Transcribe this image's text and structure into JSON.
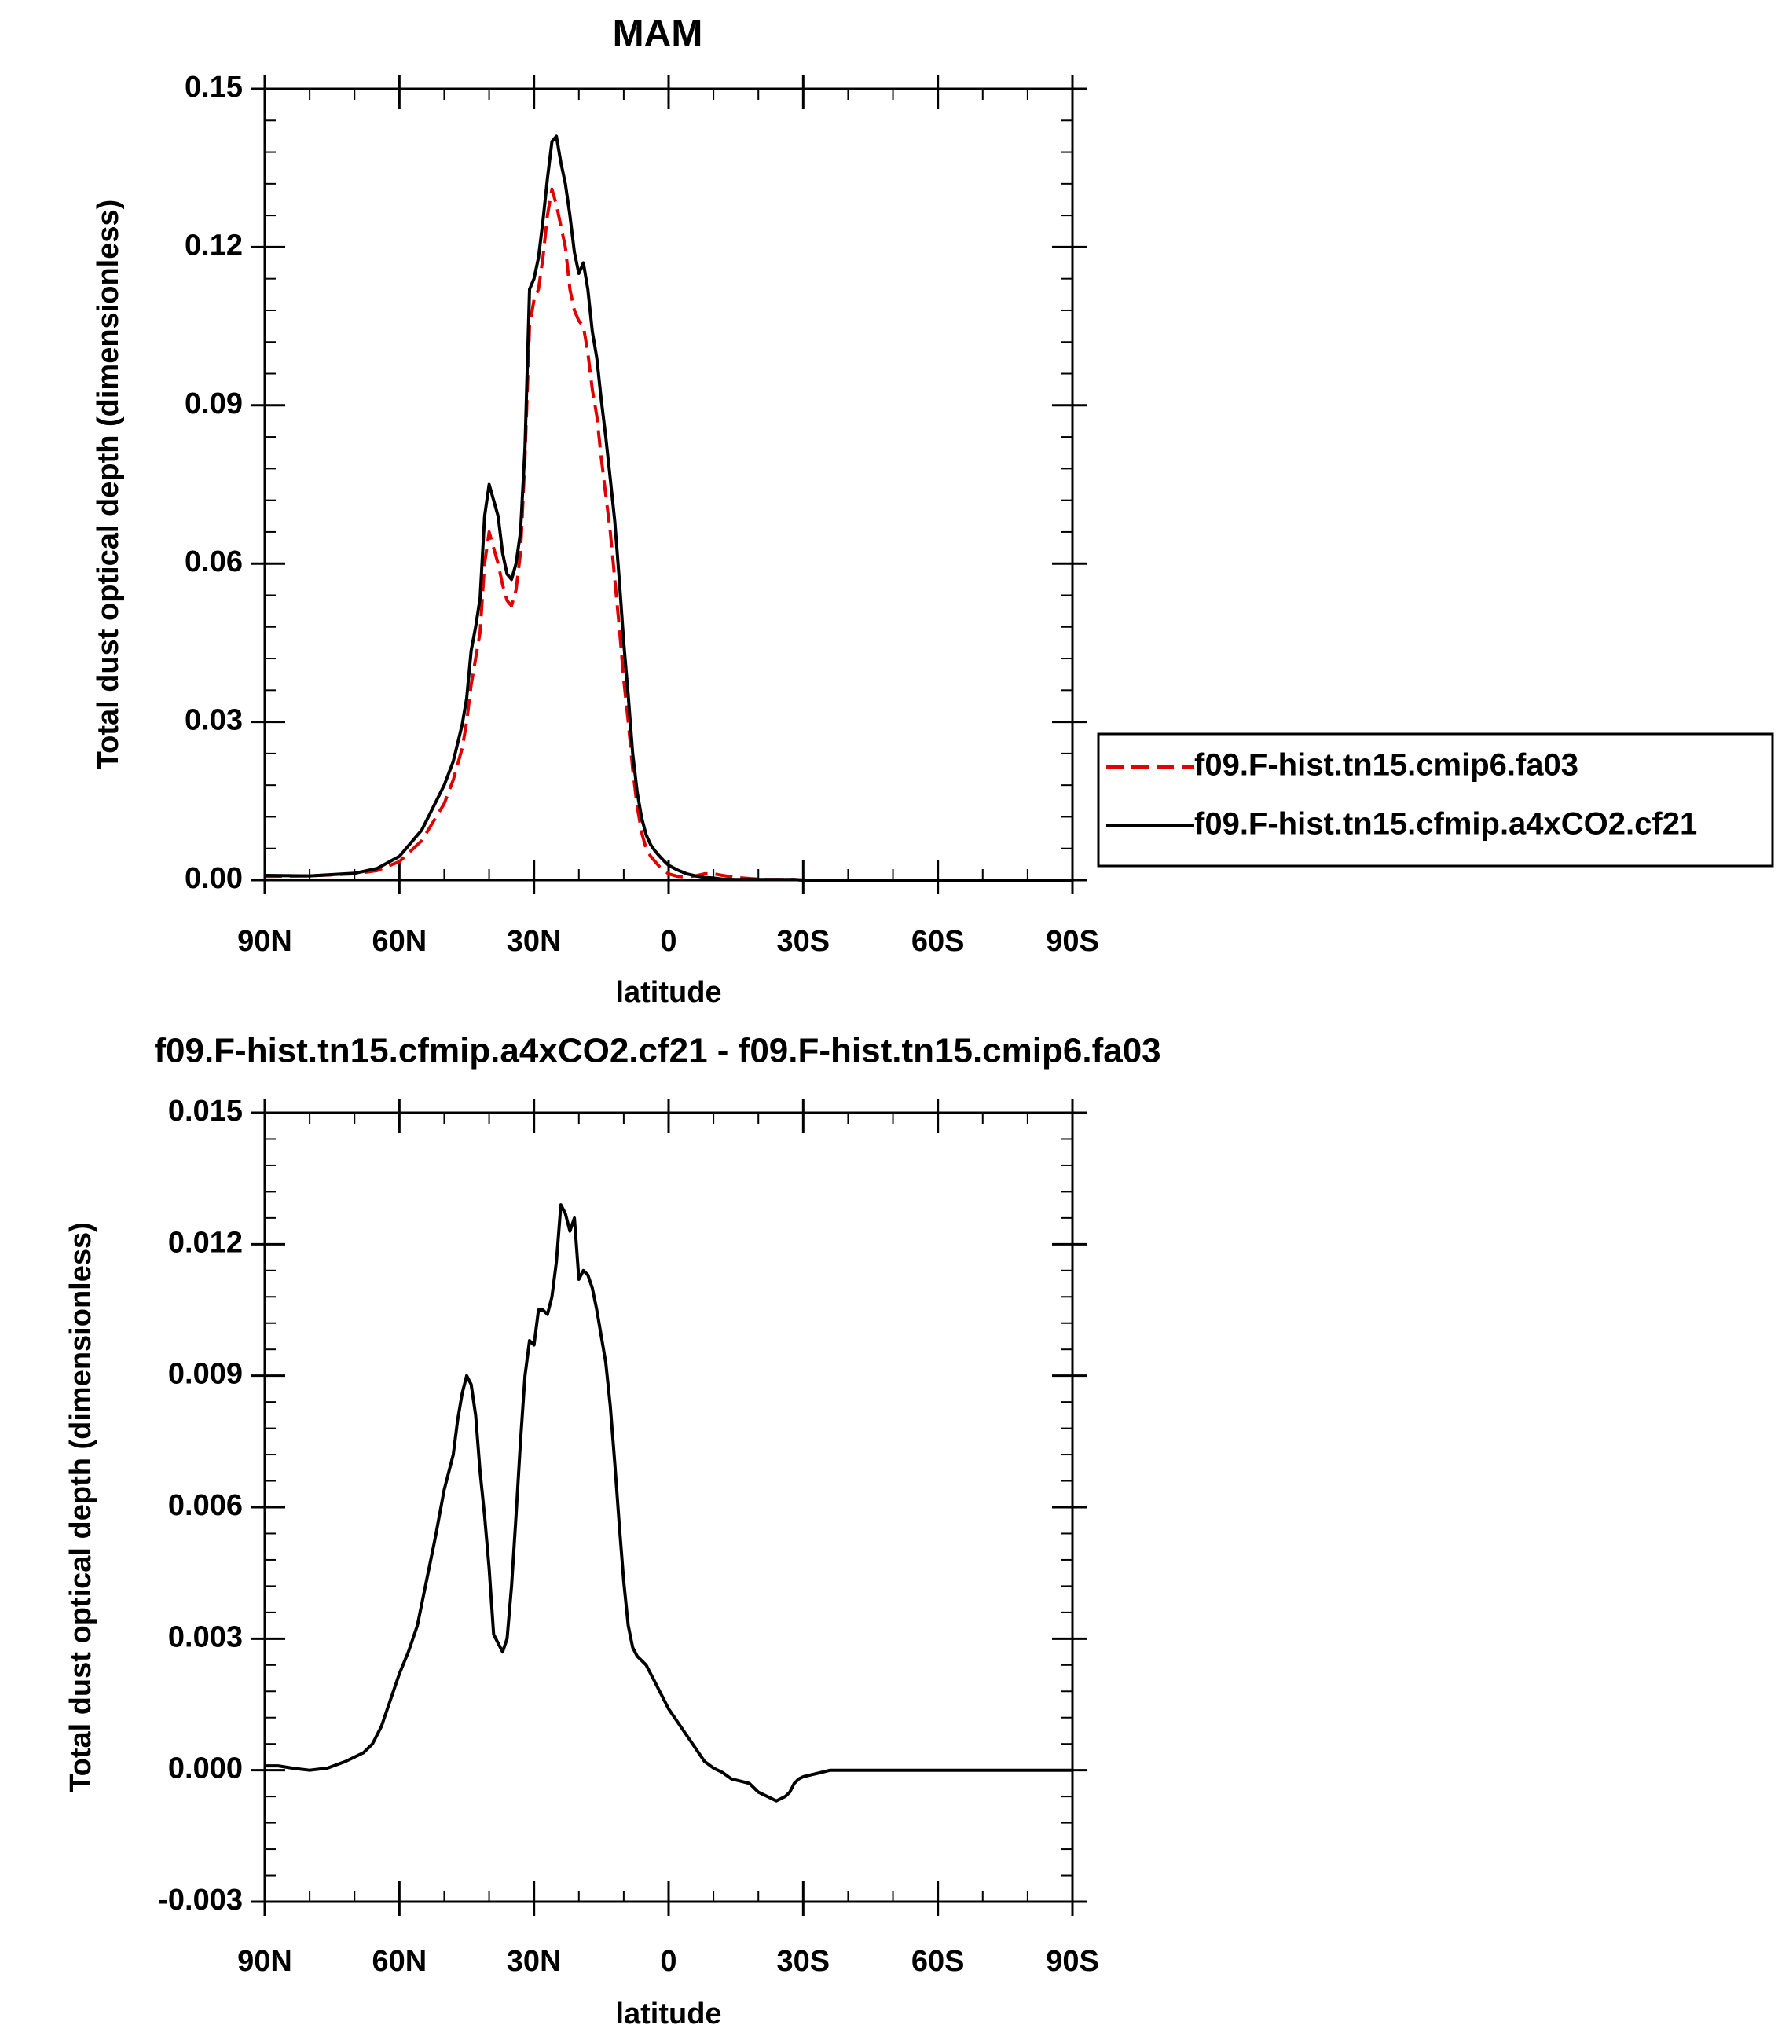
{
  "chart_data": [
    {
      "type": "line",
      "title": "MAM",
      "xlabel": "latitude",
      "ylabel": "Total dust optical depth (dimensionless)",
      "xlim": [
        90,
        -90
      ],
      "ylim": [
        0,
        0.15
      ],
      "xticks": [
        90,
        60,
        30,
        0,
        -30,
        -60,
        -90
      ],
      "xtick_labels": [
        "90N",
        "60N",
        "30N",
        "0",
        "30S",
        "60S",
        "90S"
      ],
      "yticks": [
        0,
        0.03,
        0.06,
        0.09,
        0.12,
        0.15
      ],
      "ytick_labels": [
        "0.00",
        "0.03",
        "0.06",
        "0.09",
        "0.12",
        "0.15"
      ],
      "legend_position": "right",
      "series": [
        {
          "name": "f09.F-hist.tn15.cmip6.fa03",
          "color": "#e00000",
          "dash": "dashed",
          "x": [
            90,
            80,
            70,
            65,
            60,
            55,
            50,
            48,
            46,
            45,
            44,
            43,
            42,
            41,
            40,
            39,
            38,
            37,
            36,
            35,
            34,
            33,
            32,
            31,
            30,
            29,
            28,
            27,
            26,
            25,
            24,
            23,
            22,
            21,
            20,
            19,
            18,
            17,
            16,
            15,
            14,
            13,
            12,
            11,
            10,
            9,
            8,
            7,
            6,
            5,
            4,
            3,
            2,
            1,
            0,
            -2,
            -4,
            -6,
            -8,
            -10,
            -12,
            -15,
            -18,
            -20,
            -22,
            -25,
            -28,
            -30,
            -35,
            -40,
            -50,
            -60,
            -70,
            -80,
            -90
          ],
          "y": [
            0.0007,
            0.0008,
            0.0012,
            0.0018,
            0.0035,
            0.0075,
            0.0145,
            0.019,
            0.025,
            0.03,
            0.037,
            0.042,
            0.047,
            0.06,
            0.066,
            0.063,
            0.06,
            0.056,
            0.053,
            0.052,
            0.055,
            0.062,
            0.08,
            0.105,
            0.11,
            0.112,
            0.118,
            0.126,
            0.131,
            0.128,
            0.124,
            0.12,
            0.112,
            0.108,
            0.106,
            0.105,
            0.1,
            0.093,
            0.088,
            0.08,
            0.073,
            0.066,
            0.057,
            0.048,
            0.038,
            0.03,
            0.021,
            0.014,
            0.009,
            0.006,
            0.0045,
            0.0035,
            0.0025,
            0.0018,
            0.0012,
            0.0007,
            0.0006,
            0.0008,
            0.0012,
            0.0012,
            0.0009,
            0.0005,
            0.0003,
            0.0002,
            0.0001,
            0.0001,
            0.0001,
            0.0,
            0.0,
            0.0,
            0.0,
            0.0,
            0.0,
            0.0,
            0.0
          ]
        },
        {
          "name": "f09.F-hist.tn15.cfmip.a4xCO2.cf21",
          "color": "#000000",
          "dash": "solid",
          "x": [
            90,
            80,
            70,
            65,
            60,
            55,
            50,
            48,
            46,
            45,
            44,
            43,
            42,
            41,
            40,
            39,
            38,
            37,
            36,
            35,
            34,
            33,
            32,
            31,
            30,
            29,
            28,
            27,
            26,
            25,
            24,
            23,
            22,
            21,
            20,
            19,
            18,
            17,
            16,
            15,
            14,
            13,
            12,
            11,
            10,
            9,
            8,
            7,
            6,
            5,
            4,
            3,
            2,
            1,
            0,
            -2,
            -4,
            -6,
            -8,
            -10,
            -12,
            -15,
            -18,
            -20,
            -22,
            -25,
            -28,
            -30,
            -35,
            -40,
            -50,
            -60,
            -70,
            -80,
            -90
          ],
          "y": [
            0.0009,
            0.0008,
            0.0013,
            0.0022,
            0.0045,
            0.0095,
            0.018,
            0.0225,
            0.0295,
            0.0345,
            0.0435,
            0.048,
            0.0535,
            0.069,
            0.075,
            0.072,
            0.069,
            0.062,
            0.058,
            0.057,
            0.06,
            0.066,
            0.082,
            0.112,
            0.114,
            0.118,
            0.125,
            0.133,
            0.14,
            0.141,
            0.136,
            0.132,
            0.126,
            0.119,
            0.115,
            0.117,
            0.112,
            0.104,
            0.099,
            0.091,
            0.084,
            0.076,
            0.068,
            0.057,
            0.045,
            0.035,
            0.024,
            0.0167,
            0.0118,
            0.0086,
            0.0067,
            0.0055,
            0.0045,
            0.0036,
            0.0028,
            0.0019,
            0.0012,
            0.0008,
            0.0005,
            0.0004,
            0.0002,
            0.0001,
            0.0001,
            0.0001,
            0.0001,
            0.0001,
            0.0001,
            0.0,
            0.0,
            0.0,
            0.0,
            0.0,
            0.0,
            0.0,
            0.0
          ]
        }
      ]
    },
    {
      "type": "line",
      "title": "f09.F-hist.tn15.cfmip.a4xCO2.cf21 - f09.F-hist.tn15.cmip6.fa03",
      "xlabel": "latitude",
      "ylabel": "Total dust optical depth (dimensionless)",
      "xlim": [
        90,
        -90
      ],
      "ylim": [
        -0.003,
        0.015
      ],
      "xticks": [
        90,
        60,
        30,
        0,
        -30,
        -60,
        -90
      ],
      "xtick_labels": [
        "90N",
        "60N",
        "30N",
        "0",
        "30S",
        "60S",
        "90S"
      ],
      "yticks": [
        -0.003,
        0.0,
        0.003,
        0.006,
        0.009,
        0.012,
        0.015
      ],
      "ytick_labels": [
        "-0.003",
        "0.000",
        "0.003",
        "0.006",
        "0.009",
        "0.012",
        "0.015"
      ],
      "series": [
        {
          "color": "#000000",
          "dash": "solid",
          "x": [
            90,
            87,
            84,
            80,
            76,
            72,
            68,
            66,
            64,
            62,
            60,
            58,
            56,
            54,
            52,
            50,
            48,
            47,
            46,
            45,
            44,
            43,
            42,
            41,
            40,
            39,
            38,
            37,
            36,
            35,
            34,
            33,
            32,
            31,
            30,
            29,
            28,
            27,
            26,
            25,
            24,
            23,
            22,
            21,
            20,
            19,
            18,
            17,
            16,
            15,
            14,
            13,
            12,
            11,
            10,
            9,
            8,
            7,
            6,
            5,
            4,
            3,
            2,
            1,
            0,
            -2,
            -4,
            -6,
            -8,
            -10,
            -12,
            -14,
            -16,
            -18,
            -20,
            -22,
            -24,
            -26,
            -27,
            -28,
            -29,
            -30,
            -32,
            -34,
            -36,
            -40,
            -45,
            -50,
            -60,
            -70,
            -80,
            -90
          ],
          "y": [
            0.0001,
            0.0001,
            5e-05,
            0.0,
            5e-05,
            0.0002,
            0.0004,
            0.0006,
            0.001,
            0.0016,
            0.0022,
            0.0027,
            0.0033,
            0.0043,
            0.0053,
            0.0064,
            0.0072,
            0.008,
            0.0086,
            0.009,
            0.0088,
            0.0081,
            0.0068,
            0.0058,
            0.0046,
            0.0031,
            0.0029,
            0.0027,
            0.003,
            0.0042,
            0.0058,
            0.0075,
            0.009,
            0.0098,
            0.0097,
            0.0105,
            0.0105,
            0.0104,
            0.0108,
            0.0116,
            0.0129,
            0.0127,
            0.0123,
            0.0126,
            0.0112,
            0.0114,
            0.0113,
            0.011,
            0.0105,
            0.0099,
            0.0093,
            0.0083,
            0.007,
            0.0056,
            0.0043,
            0.0033,
            0.0028,
            0.0026,
            0.0025,
            0.0024,
            0.0022,
            0.002,
            0.0018,
            0.0016,
            0.0014,
            0.0011,
            0.0008,
            0.0005,
            0.0002,
            5e-05,
            -5e-05,
            -0.0002,
            -0.00025,
            -0.0003,
            -0.0005,
            -0.0006,
            -0.0007,
            -0.0006,
            -0.0005,
            -0.0003,
            -0.0002,
            -0.00015,
            -0.0001,
            -5e-05,
            0.0,
            0.0,
            0.0,
            0.0,
            0.0,
            0.0,
            0.0,
            0.0
          ]
        }
      ]
    }
  ]
}
